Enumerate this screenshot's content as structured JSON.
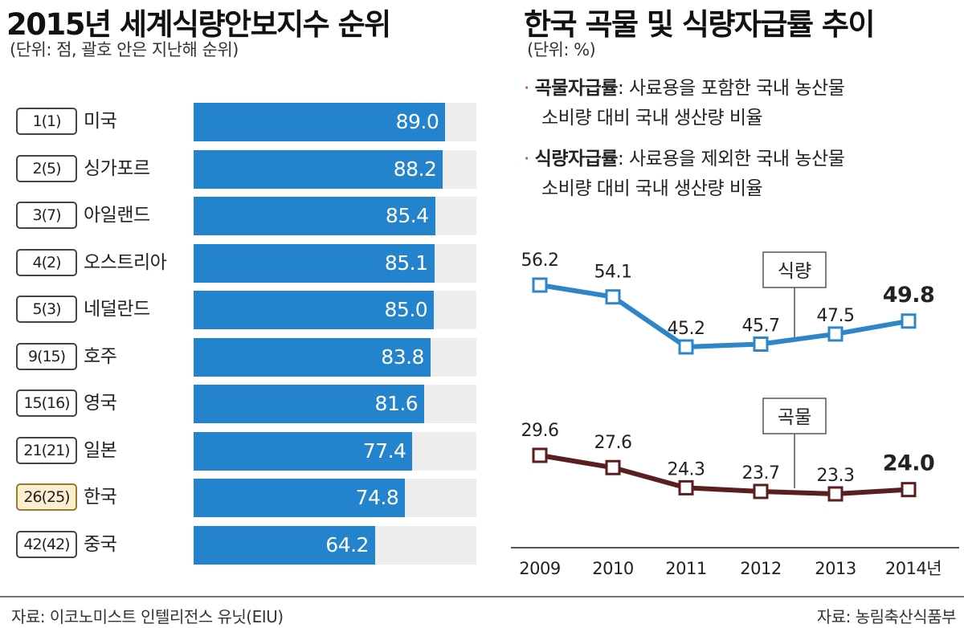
{
  "left": {
    "title": "2015년 세계식량안보지수 순위",
    "unit": "(단위: 점, 괄호 안은 지난해 순위)",
    "source": "자료: 이코노미스트 인텔리전스 유닛(EIU)"
  },
  "right": {
    "title": "한국 곡물 및 식량자급률 추이",
    "unit": "(단위: %)",
    "definitions": [
      {
        "term": "곡물자급률",
        "line1": ": 사료용을 포함한 국내 농산물",
        "line2": "소비량 대비 국내 생산량 비율"
      },
      {
        "term": "식량자급률",
        "line1": ": 사료용을 제외한 국내 농산물",
        "line2": "소비량 대비 국내 생산량 비율"
      }
    ],
    "source": "자료: 농림축산식품부"
  },
  "chart_data": [
    {
      "type": "bar",
      "orientation": "horizontal",
      "title": "2015년 세계식량안보지수 순위",
      "categories": [
        "미국",
        "싱가포르",
        "아일랜드",
        "오스트리아",
        "네덜란드",
        "호주",
        "영국",
        "일본",
        "한국",
        "중국"
      ],
      "rank_labels": [
        "1(1)",
        "2(5)",
        "3(7)",
        "4(2)",
        "5(3)",
        "9(15)",
        "15(16)",
        "21(21)",
        "26(25)",
        "42(42)"
      ],
      "values": [
        89.0,
        88.2,
        85.4,
        85.1,
        85.0,
        83.8,
        81.6,
        77.4,
        74.8,
        64.2
      ],
      "value_labels": [
        "89.0",
        "88.2",
        "85.4",
        "85.1",
        "85.0",
        "83.8",
        "81.6",
        "77.4",
        "74.8",
        "64.2"
      ],
      "highlight": "한국",
      "xlim": [
        0,
        100
      ],
      "colors": {
        "bar": "#2383cc",
        "track": "#ededed",
        "highlight_box": "#fbefcf"
      }
    },
    {
      "type": "line",
      "title": "한국 곡물 및 식량자급률 추이",
      "x_labels": [
        "2009",
        "2010",
        "2011",
        "2012",
        "2013",
        "2014년"
      ],
      "series": [
        {
          "name": "식량",
          "values": [
            56.2,
            54.1,
            45.2,
            45.7,
            47.5,
            49.8
          ],
          "labels": [
            "56.2",
            "54.1",
            "45.2",
            "45.7",
            "47.5",
            "49.8"
          ],
          "color": "#2e86c8"
        },
        {
          "name": "곡물",
          "values": [
            29.6,
            27.6,
            24.3,
            23.7,
            23.3,
            24.0
          ],
          "labels": [
            "29.6",
            "27.6",
            "24.3",
            "23.7",
            "23.3",
            "24.0"
          ],
          "color": "#5a1e1e"
        }
      ]
    }
  ]
}
